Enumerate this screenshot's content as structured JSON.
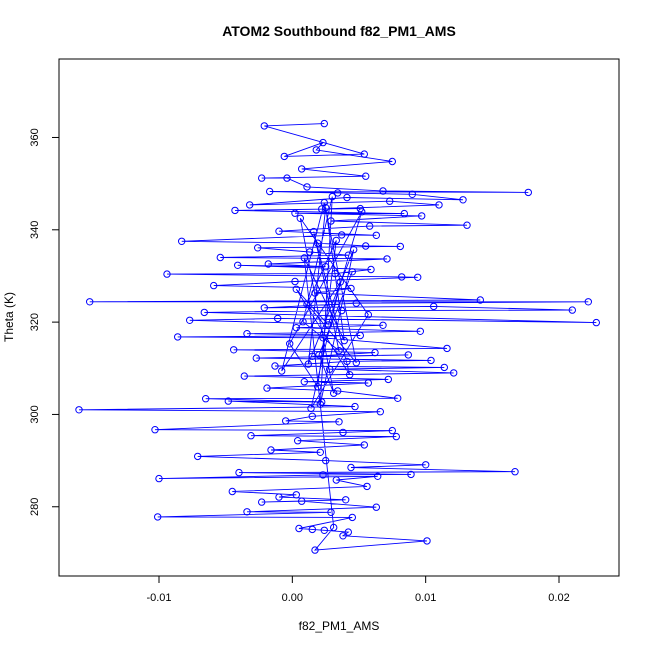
{
  "chart_data": {
    "type": "line",
    "title": "ATOM2 Southbound f82_PM1_AMS",
    "xlabel": "f82_PM1_AMS",
    "ylabel": "Theta (K)",
    "xlim": [
      -0.0175,
      0.0245
    ],
    "ylim": [
      265.0,
      377.0
    ],
    "x_ticks": [
      -0.01,
      0.0,
      0.01,
      0.02
    ],
    "x_tick_labels": [
      "-0.01",
      "0.00",
      "0.01",
      "0.02"
    ],
    "y_ticks": [
      280,
      300,
      320,
      340,
      360
    ],
    "y_tick_labels": [
      "280",
      "300",
      "320",
      "340",
      "360"
    ],
    "markers": "open-circle",
    "color": "#0000ff",
    "series": [
      {
        "name": "f82_PM1_AMS",
        "points": [
          [
            0.0024,
            363.0
          ],
          [
            -0.0021,
            362.5
          ],
          [
            0.0054,
            356.4
          ],
          [
            -0.0006,
            355.9
          ],
          [
            0.0023,
            358.9
          ],
          [
            0.0018,
            357.3
          ],
          [
            0.0075,
            354.8
          ],
          [
            0.0007,
            353.2
          ],
          [
            0.0055,
            351.6
          ],
          [
            -0.0023,
            351.2
          ],
          [
            -0.0004,
            351.2
          ],
          [
            0.0011,
            349.3
          ],
          [
            0.0068,
            348.4
          ],
          [
            0.0177,
            348.1
          ],
          [
            -0.0017,
            348.3
          ],
          [
            0.0034,
            348.0
          ],
          [
            0.009,
            347.7
          ],
          [
            0.0128,
            346.5
          ],
          [
            0.0041,
            347.0
          ],
          [
            -0.0032,
            345.4
          ],
          [
            0.0073,
            346.2
          ],
          [
            0.011,
            345.4
          ],
          [
            0.0022,
            344.5
          ],
          [
            0.0051,
            344.6
          ],
          [
            -0.0043,
            344.2
          ],
          [
            0.0084,
            343.5
          ],
          [
            0.0002,
            343.6
          ],
          [
            0.0097,
            343.0
          ],
          [
            0.0029,
            341.9
          ],
          [
            0.0131,
            341.0
          ],
          [
            0.0058,
            340.8
          ],
          [
            -0.001,
            339.7
          ],
          [
            0.0063,
            338.8
          ],
          [
            0.0037,
            338.9
          ],
          [
            -0.0083,
            337.5
          ],
          [
            0.0019,
            337.1
          ],
          [
            0.0055,
            336.5
          ],
          [
            0.0081,
            336.4
          ],
          [
            -0.0026,
            336.1
          ],
          [
            0.0013,
            335.2
          ],
          [
            0.0042,
            334.5
          ],
          [
            -0.0054,
            334.0
          ],
          [
            0.0071,
            333.7
          ],
          [
            -0.0018,
            332.6
          ],
          [
            0.0025,
            332.0
          ],
          [
            -0.0041,
            332.3
          ],
          [
            0.0059,
            331.4
          ],
          [
            0.0032,
            330.5
          ],
          [
            -0.0094,
            330.4
          ],
          [
            0.0082,
            329.8
          ],
          [
            0.0094,
            329.7
          ],
          [
            0.0002,
            328.8
          ],
          [
            -0.0059,
            327.9
          ],
          [
            0.0044,
            327.3
          ],
          [
            0.0017,
            326.3
          ],
          [
            0.0141,
            324.8
          ],
          [
            -0.0152,
            324.4
          ],
          [
            0.0222,
            324.4
          ],
          [
            0.0048,
            324.1
          ],
          [
            -0.0021,
            323.1
          ],
          [
            0.0106,
            323.4
          ],
          [
            0.021,
            322.6
          ],
          [
            0.0037,
            322.5
          ],
          [
            -0.0066,
            322.1
          ],
          [
            0.0228,
            319.9
          ],
          [
            -0.0011,
            320.8
          ],
          [
            -0.0077,
            320.4
          ],
          [
            0.0068,
            319.3
          ],
          [
            0.0003,
            318.8
          ],
          [
            0.0096,
            318.0
          ],
          [
            -0.0034,
            317.5
          ],
          [
            0.0051,
            317.1
          ],
          [
            -0.0086,
            316.8
          ],
          [
            0.0023,
            316.6
          ],
          [
            0.0116,
            314.3
          ],
          [
            -0.0044,
            314.0
          ],
          [
            0.0062,
            313.4
          ],
          [
            0.0015,
            312.6
          ],
          [
            0.0087,
            312.9
          ],
          [
            -0.0027,
            312.2
          ],
          [
            0.0104,
            311.7
          ],
          [
            0.0041,
            311.5
          ],
          [
            -0.0013,
            310.5
          ],
          [
            0.0114,
            310.2
          ],
          [
            0.0028,
            309.8
          ],
          [
            0.0121,
            309.0
          ],
          [
            -0.0036,
            308.3
          ],
          [
            0.0072,
            307.6
          ],
          [
            0.0009,
            307.1
          ],
          [
            0.0057,
            306.8
          ],
          [
            -0.0019,
            305.7
          ],
          [
            0.0034,
            305.1
          ],
          [
            0.0079,
            303.5
          ],
          [
            -0.0065,
            303.4
          ],
          [
            0.0022,
            302.7
          ],
          [
            -0.0048,
            302.9
          ],
          [
            0.0047,
            301.7
          ],
          [
            -0.016,
            301.0
          ],
          [
            0.0066,
            300.6
          ],
          [
            0.0015,
            299.6
          ],
          [
            -0.0005,
            298.6
          ],
          [
            0.0035,
            298.4
          ],
          [
            -0.0103,
            296.7
          ],
          [
            0.0075,
            296.5
          ],
          [
            0.0038,
            296.1
          ],
          [
            -0.0031,
            295.4
          ],
          [
            0.0078,
            295.2
          ],
          [
            0.0004,
            294.3
          ],
          [
            0.0054,
            293.4
          ],
          [
            -0.0016,
            292.3
          ],
          [
            0.0021,
            291.8
          ],
          [
            -0.0071,
            290.9
          ],
          [
            0.0025,
            290.0
          ],
          [
            0.01,
            289.1
          ],
          [
            0.0044,
            288.5
          ],
          [
            0.0167,
            287.6
          ],
          [
            -0.004,
            287.4
          ],
          [
            0.0089,
            287.0
          ],
          [
            0.0023,
            286.9
          ],
          [
            -0.01,
            286.1
          ],
          [
            0.0064,
            286.6
          ],
          [
            0.0033,
            285.8
          ],
          [
            0.0056,
            284.4
          ],
          [
            -0.0045,
            283.3
          ],
          [
            0.0003,
            282.6
          ],
          [
            -0.001,
            282.1
          ],
          [
            0.004,
            281.5
          ],
          [
            -0.0023,
            281.0
          ],
          [
            0.0007,
            281.2
          ],
          [
            0.0063,
            279.9
          ],
          [
            -0.0034,
            278.9
          ],
          [
            0.0029,
            278.8
          ],
          [
            -0.0101,
            277.8
          ],
          [
            0.0045,
            277.7
          ],
          [
            0.0005,
            275.3
          ],
          [
            0.0015,
            275.1
          ],
          [
            0.0024,
            274.9
          ],
          [
            0.0042,
            274.5
          ],
          [
            0.0038,
            273.7
          ],
          [
            0.0101,
            272.6
          ],
          [
            0.0017,
            270.6
          ],
          [
            0.0031,
            275.5
          ],
          [
            0.0009,
            333.9
          ],
          [
            0.0039,
            316.0
          ],
          [
            0.0025,
            344.8
          ],
          [
            0.0012,
            310.9
          ],
          [
            0.0046,
            335.7
          ],
          [
            0.0021,
            302.2
          ],
          [
            0.003,
            347.2
          ],
          [
            0.0008,
            320.1
          ],
          [
            0.0035,
            313.8
          ],
          [
            0.0016,
            339.6
          ],
          [
            0.0043,
            308.6
          ],
          [
            0.0003,
            327.1
          ],
          [
            0.0027,
            319.4
          ],
          [
            0.0052,
            343.9
          ],
          [
            -0.0002,
            315.3
          ],
          [
            0.0019,
            306.0
          ],
          [
            0.0033,
            337.7
          ],
          [
            0.0011,
            323.9
          ],
          [
            0.0048,
            311.2
          ],
          [
            0.0024,
            345.9
          ],
          [
            -0.0008,
            309.4
          ],
          [
            0.0036,
            328.7
          ],
          [
            0.0014,
            301.3
          ],
          [
            0.0057,
            321.6
          ],
          [
            0.0006,
            342.5
          ],
          [
            0.0031,
            304.6
          ],
          [
            0.002,
            312.9
          ],
          [
            0.0045,
            330.9
          ]
        ]
      }
    ]
  }
}
